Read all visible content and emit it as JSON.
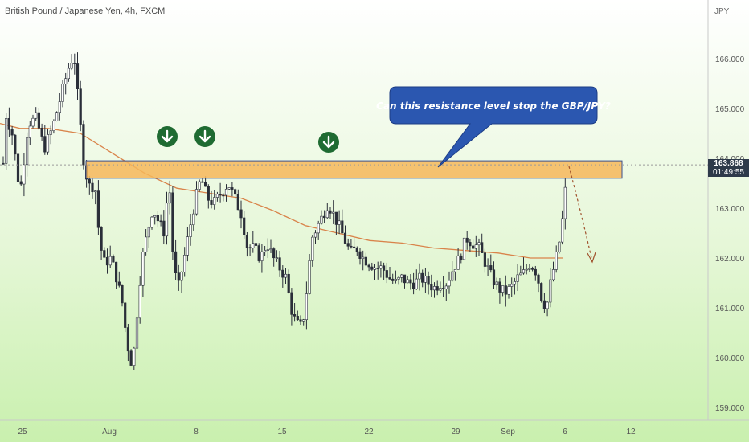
{
  "chart_data": {
    "type": "candlestick",
    "title": "British Pound / Japanese Yen, 4h, FXCM",
    "y_unit": "JPY",
    "ylim": [
      158.6,
      167.0
    ],
    "y_ticks": [
      "166.000",
      "165.000",
      "164.000",
      "163.000",
      "162.000",
      "161.000",
      "160.000",
      "159.000"
    ],
    "y_tick_values": [
      166,
      165,
      164,
      163,
      162,
      161,
      160,
      159
    ],
    "x_ticks": [
      "25",
      "Aug",
      "8",
      "15",
      "22",
      "29",
      "Sep",
      "6",
      "12"
    ],
    "last_price": "163.868",
    "countdown": "01:49:55",
    "resistance_zone": [
      163.6,
      163.95
    ],
    "annotation": "Can this resistance level stop the GBP/JPY?",
    "moving_average": [
      [
        0,
        164.7
      ],
      [
        25,
        164.6
      ],
      [
        60,
        164.6
      ],
      [
        100,
        164.5
      ],
      [
        140,
        164.1
      ],
      [
        180,
        163.7
      ],
      [
        220,
        163.4
      ],
      [
        260,
        163.3
      ],
      [
        300,
        163.2
      ],
      [
        340,
        162.95
      ],
      [
        380,
        162.65
      ],
      [
        420,
        162.5
      ],
      [
        460,
        162.35
      ],
      [
        500,
        162.3
      ],
      [
        540,
        162.2
      ],
      [
        580,
        162.15
      ],
      [
        620,
        162.1
      ],
      [
        660,
        162.0
      ],
      [
        700,
        162.0
      ]
    ],
    "close_path": [
      [
        5,
        165.0
      ],
      [
        15,
        164.5
      ],
      [
        25,
        163.3
      ],
      [
        35,
        164.7
      ],
      [
        45,
        164.8
      ],
      [
        55,
        164.2
      ],
      [
        65,
        164.6
      ],
      [
        75,
        165.2
      ],
      [
        85,
        165.8
      ],
      [
        92,
        166.1
      ],
      [
        98,
        165.0
      ],
      [
        105,
        163.8
      ],
      [
        112,
        163.4
      ],
      [
        118,
        163.5
      ],
      [
        124,
        162.3
      ],
      [
        130,
        161.9
      ],
      [
        138,
        162.0
      ],
      [
        145,
        161.6
      ],
      [
        152,
        161.1
      ],
      [
        158,
        160.3
      ],
      [
        165,
        159.8
      ],
      [
        170,
        160.8
      ],
      [
        176,
        161.9
      ],
      [
        182,
        162.4
      ],
      [
        190,
        163.0
      ],
      [
        198,
        162.7
      ],
      [
        205,
        162.5
      ],
      [
        210,
        163.7
      ],
      [
        216,
        161.8
      ],
      [
        222,
        161.4
      ],
      [
        228,
        161.9
      ],
      [
        235,
        162.5
      ],
      [
        242,
        163.1
      ],
      [
        250,
        163.6
      ],
      [
        258,
        163.2
      ],
      [
        266,
        163.1
      ],
      [
        275,
        163.3
      ],
      [
        284,
        163.5
      ],
      [
        292,
        163.2
      ],
      [
        300,
        162.9
      ],
      [
        308,
        162.2
      ],
      [
        316,
        162.2
      ],
      [
        324,
        162.0
      ],
      [
        332,
        162.3
      ],
      [
        340,
        162.0
      ],
      [
        348,
        161.8
      ],
      [
        356,
        161.6
      ],
      [
        362,
        161.0
      ],
      [
        368,
        160.7
      ],
      [
        376,
        160.6
      ],
      [
        382,
        161.4
      ],
      [
        388,
        162.4
      ],
      [
        394,
        162.6
      ],
      [
        400,
        162.8
      ],
      [
        408,
        163.1
      ],
      [
        414,
        162.9
      ],
      [
        420,
        162.7
      ],
      [
        428,
        162.4
      ],
      [
        436,
        162.1
      ],
      [
        444,
        162.2
      ],
      [
        452,
        162.0
      ],
      [
        460,
        161.9
      ],
      [
        468,
        161.8
      ],
      [
        476,
        161.8
      ],
      [
        484,
        161.6
      ],
      [
        492,
        161.5
      ],
      [
        500,
        161.6
      ],
      [
        508,
        161.5
      ],
      [
        516,
        161.5
      ],
      [
        524,
        161.6
      ],
      [
        532,
        161.5
      ],
      [
        540,
        161.4
      ],
      [
        548,
        161.5
      ],
      [
        556,
        161.5
      ],
      [
        564,
        161.8
      ],
      [
        572,
        162.0
      ],
      [
        580,
        162.4
      ],
      [
        588,
        162.3
      ],
      [
        596,
        162.2
      ],
      [
        604,
        161.9
      ],
      [
        612,
        161.6
      ],
      [
        620,
        161.4
      ],
      [
        628,
        161.3
      ],
      [
        636,
        161.4
      ],
      [
        644,
        161.6
      ],
      [
        652,
        161.7
      ],
      [
        660,
        161.9
      ],
      [
        668,
        161.7
      ],
      [
        674,
        161.2
      ],
      [
        680,
        161.0
      ],
      [
        686,
        161.6
      ],
      [
        692,
        162.0
      ],
      [
        698,
        162.5
      ],
      [
        703,
        163.3
      ],
      [
        707,
        163.9
      ]
    ]
  }
}
